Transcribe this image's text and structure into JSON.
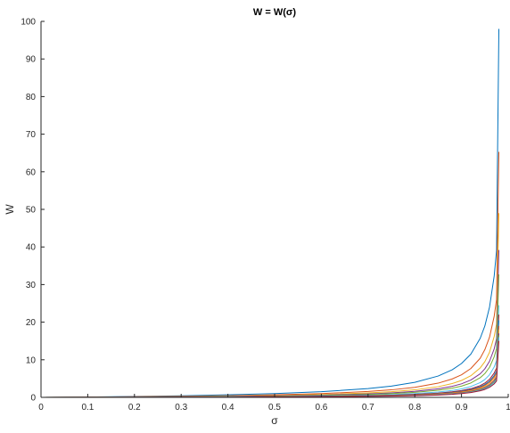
{
  "chart_data": {
    "type": "line",
    "title": "W = W(σ)",
    "xlabel": "σ",
    "ylabel": "W",
    "xlim": [
      0,
      1
    ],
    "ylim": [
      0,
      100
    ],
    "xticks": [
      "0",
      "0.1",
      "0.2",
      "0.3",
      "0.4",
      "0.5",
      "0.6",
      "0.7",
      "0.8",
      "0.9",
      "1"
    ],
    "yticks": [
      "0",
      "10",
      "20",
      "30",
      "40",
      "50",
      "60",
      "70",
      "80",
      "90",
      "100"
    ],
    "grid": false,
    "legend": "none",
    "x": [
      0,
      0.1,
      0.2,
      0.3,
      0.4,
      0.5,
      0.6,
      0.7,
      0.75,
      0.8,
      0.85,
      0.88,
      0.9,
      0.92,
      0.94,
      0.95,
      0.96,
      0.97,
      0.975,
      0.98
    ],
    "series": [
      {
        "color": "#0072BD",
        "values": [
          0,
          0.1,
          0.25,
          0.43,
          0.67,
          1.0,
          1.5,
          2.33,
          3.0,
          4.0,
          5.67,
          7.33,
          9.0,
          11.5,
          15.7,
          19.0,
          24.0,
          32.3,
          39.0,
          98.0
        ]
      },
      {
        "color": "#D95319",
        "values": [
          0,
          0.07,
          0.17,
          0.29,
          0.45,
          0.67,
          1.0,
          1.56,
          2.0,
          2.67,
          3.78,
          4.89,
          6.0,
          7.67,
          10.4,
          12.7,
          16.0,
          21.6,
          26.0,
          65.3
        ]
      },
      {
        "color": "#EDB120",
        "values": [
          0,
          0.05,
          0.13,
          0.21,
          0.33,
          0.5,
          0.75,
          1.17,
          1.5,
          2.0,
          2.83,
          3.67,
          4.5,
          5.75,
          7.83,
          9.5,
          12.0,
          16.2,
          19.5,
          49.0
        ]
      },
      {
        "color": "#7E2F8E",
        "values": [
          0,
          0.04,
          0.1,
          0.17,
          0.27,
          0.4,
          0.6,
          0.93,
          1.2,
          1.6,
          2.27,
          2.93,
          3.6,
          4.6,
          6.27,
          7.6,
          9.6,
          12.9,
          15.6,
          39.2
        ]
      },
      {
        "color": "#77AC30",
        "values": [
          0,
          0.03,
          0.08,
          0.14,
          0.22,
          0.33,
          0.5,
          0.78,
          1.0,
          1.33,
          1.89,
          2.44,
          3.0,
          3.83,
          5.22,
          6.33,
          8.0,
          10.8,
          13.0,
          32.7
        ]
      },
      {
        "color": "#4DBEEE",
        "values": [
          0,
          0.02,
          0.06,
          0.11,
          0.17,
          0.25,
          0.38,
          0.58,
          0.75,
          1.0,
          1.42,
          1.83,
          2.25,
          2.88,
          3.92,
          4.75,
          6.0,
          8.08,
          9.75,
          24.5
        ]
      },
      {
        "color": "#A2142F",
        "values": [
          0,
          0.02,
          0.05,
          0.09,
          0.13,
          0.2,
          0.3,
          0.47,
          0.6,
          0.8,
          1.13,
          1.47,
          1.8,
          2.3,
          3.13,
          3.8,
          4.8,
          6.47,
          7.8,
          22.0
        ]
      },
      {
        "color": "#0072BD",
        "values": [
          0,
          0.02,
          0.05,
          0.08,
          0.12,
          0.18,
          0.27,
          0.42,
          0.54,
          0.72,
          1.02,
          1.32,
          1.62,
          2.07,
          2.82,
          3.42,
          4.32,
          5.82,
          7.02,
          20.5
        ]
      },
      {
        "color": "#D95319",
        "values": [
          0,
          0.02,
          0.04,
          0.07,
          0.11,
          0.17,
          0.25,
          0.39,
          0.5,
          0.67,
          0.94,
          1.22,
          1.5,
          1.92,
          2.61,
          3.17,
          4.0,
          5.39,
          6.5,
          19.0
        ]
      },
      {
        "color": "#EDB120",
        "values": [
          0,
          0.01,
          0.04,
          0.06,
          0.1,
          0.15,
          0.22,
          0.35,
          0.45,
          0.6,
          0.85,
          1.1,
          1.35,
          1.72,
          2.35,
          2.85,
          3.6,
          4.85,
          5.85,
          18.0
        ]
      },
      {
        "color": "#7E2F8E",
        "values": [
          0,
          0.01,
          0.03,
          0.06,
          0.09,
          0.14,
          0.21,
          0.32,
          0.41,
          0.55,
          0.78,
          1.0,
          1.23,
          1.58,
          2.15,
          2.6,
          3.3,
          4.45,
          5.35,
          17.0
        ]
      },
      {
        "color": "#77AC30",
        "values": [
          0,
          0.01,
          0.03,
          0.05,
          0.08,
          0.13,
          0.19,
          0.3,
          0.38,
          0.51,
          0.72,
          0.93,
          1.14,
          1.46,
          1.98,
          2.4,
          3.04,
          4.1,
          4.94,
          16.5
        ]
      },
      {
        "color": "#4DBEEE",
        "values": [
          0,
          0.01,
          0.03,
          0.05,
          0.08,
          0.12,
          0.18,
          0.28,
          0.36,
          0.48,
          0.68,
          0.88,
          1.08,
          1.38,
          1.88,
          2.28,
          2.88,
          3.88,
          4.68,
          16.0
        ]
      },
      {
        "color": "#A2142F",
        "values": [
          0,
          0.01,
          0.03,
          0.05,
          0.07,
          0.11,
          0.17,
          0.26,
          0.33,
          0.44,
          0.63,
          0.81,
          1.0,
          1.28,
          1.74,
          2.11,
          2.67,
          3.59,
          4.33,
          15.0
        ]
      }
    ]
  }
}
